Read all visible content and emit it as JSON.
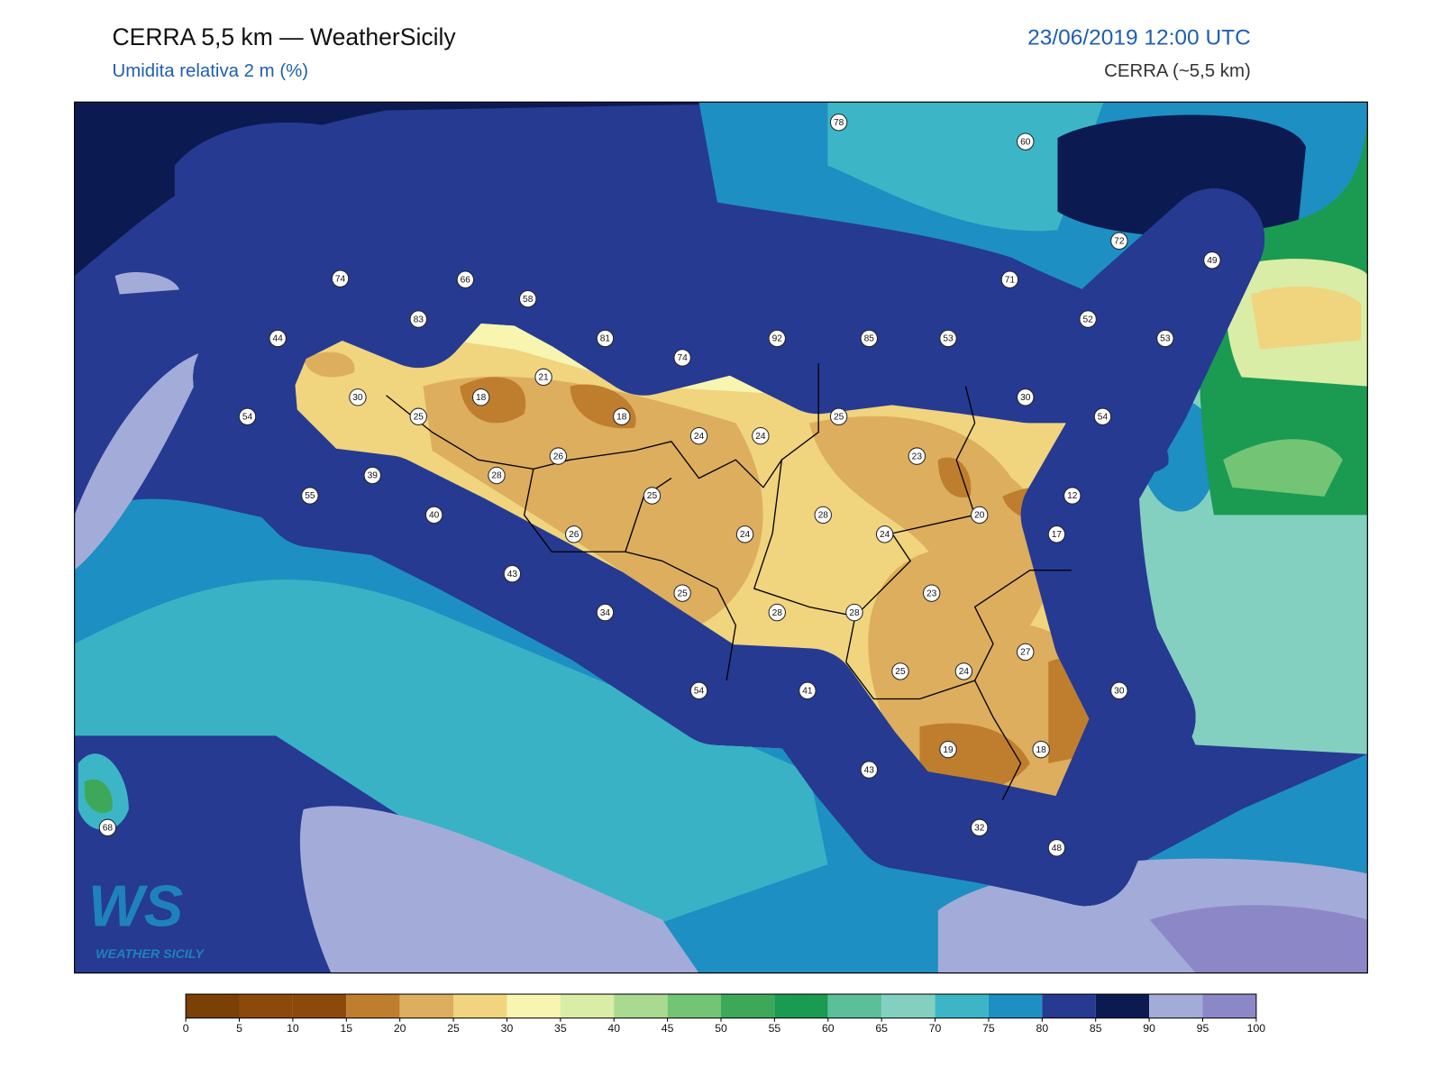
{
  "header": {
    "title": "CERRA 5,5 km — WeatherSicily",
    "subtitle": "Umidita relativa 2 m (%)",
    "datetime": "23/06/2019 12:00 UTC",
    "model": "CERRA (~5,5 km)"
  },
  "stations": [
    78,
    60,
    72,
    49,
    74,
    66,
    58,
    71,
    83,
    52,
    44,
    81,
    92,
    85,
    53,
    53,
    74,
    21,
    30,
    18,
    30,
    54,
    25,
    18,
    25,
    54,
    24,
    24,
    26,
    23,
    39,
    28,
    25,
    12,
    55,
    40,
    28,
    20,
    26,
    24,
    24,
    17,
    43,
    23,
    25,
    34,
    28,
    28,
    27,
    25,
    24,
    30,
    54,
    41,
    19,
    18,
    43,
    32,
    48,
    68
  ],
  "logo": {
    "mark": "WS",
    "text": "WEATHER SICILY"
  },
  "colorbar": {
    "ticks": [
      0,
      5,
      10,
      15,
      20,
      25,
      30,
      35,
      40,
      45,
      50,
      55,
      60,
      65,
      70,
      75,
      80,
      85,
      90,
      95,
      100
    ],
    "colors": [
      "#7a4006",
      "#8b4a0c",
      "#8b4a0c",
      "#bf7e2e",
      "#dcae5e",
      "#f0d47e",
      "#f7f5b0",
      "#d9eda6",
      "#a9da8f",
      "#74c476",
      "#3ea85a",
      "#1b9a52",
      "#5bbf9a",
      "#83d0c0",
      "#3cb6c6",
      "#1e8fc2",
      "#263a92",
      "#0c1a52",
      "#a3acd8",
      "#8c88c8"
    ]
  }
}
